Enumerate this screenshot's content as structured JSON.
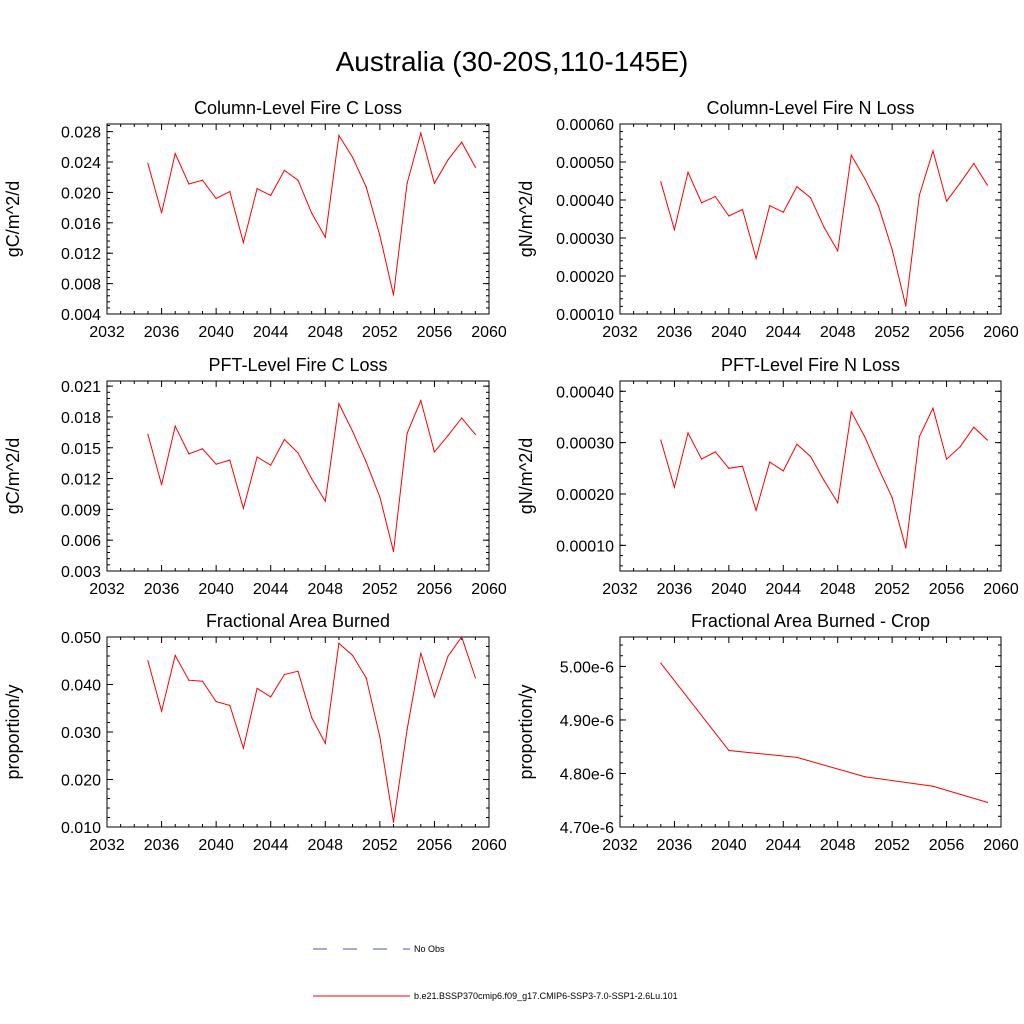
{
  "page_title": "Australia (30-20S,110-145E)",
  "colors": {
    "model": "#ff0000",
    "obs": "#4a5aa8",
    "axis": "#000000"
  },
  "legend": {
    "obs_label": "No Obs",
    "model_label": "b.e21.BSSP370cmip6.f09_g17.CMIP6-SSP3-7.0-SSP1-2.6Lu.101"
  },
  "chart_data": [
    {
      "type": "line",
      "title": "Column-Level Fire C Loss",
      "ylabel": "gC/m^2/d",
      "xlim": [
        2032,
        2060
      ],
      "ylim": [
        0.004,
        0.029
      ],
      "xticks": [
        "2032",
        "2036",
        "2040",
        "2044",
        "2048",
        "2052",
        "2056",
        "2060"
      ],
      "yticks": [
        "0.004",
        "0.008",
        "0.012",
        "0.016",
        "0.020",
        "0.024",
        "0.028"
      ],
      "series": [
        {
          "x": [
            2035,
            2036,
            2037,
            2038,
            2039,
            2040,
            2041,
            2042,
            2043,
            2044,
            2045,
            2046,
            2047,
            2048,
            2049,
            2050,
            2051,
            2052,
            2053,
            2054,
            2055,
            2056,
            2057,
            2058,
            2059
          ],
          "y": [
            0.0238,
            0.0173,
            0.0251,
            0.0211,
            0.0216,
            0.0192,
            0.0201,
            0.0134,
            0.0205,
            0.0196,
            0.0229,
            0.0216,
            0.0173,
            0.0141,
            0.0275,
            0.0246,
            0.0207,
            0.0143,
            0.0065,
            0.0212,
            0.0278,
            0.0212,
            0.0243,
            0.0266,
            0.0233
          ]
        }
      ]
    },
    {
      "type": "line",
      "title": "Column-Level Fire N Loss",
      "ylabel": "gN/m^2/d",
      "xlim": [
        2032,
        2060
      ],
      "ylim": [
        0.0001,
        0.0006
      ],
      "xticks": [
        "2032",
        "2036",
        "2040",
        "2044",
        "2048",
        "2052",
        "2056",
        "2060"
      ],
      "yticks": [
        "0.00010",
        "0.00020",
        "0.00030",
        "0.00040",
        "0.00050",
        "0.00060"
      ],
      "series": [
        {
          "x": [
            2035,
            2036,
            2037,
            2038,
            2039,
            2040,
            2041,
            2042,
            2043,
            2044,
            2045,
            2046,
            2047,
            2048,
            2049,
            2050,
            2051,
            2052,
            2053,
            2054,
            2055,
            2056,
            2057,
            2058,
            2059
          ],
          "y": [
            0.000448,
            0.000322,
            0.000473,
            0.000393,
            0.000409,
            0.000358,
            0.000375,
            0.000246,
            0.000385,
            0.000368,
            0.000435,
            0.000406,
            0.000328,
            0.000266,
            0.000518,
            0.000456,
            0.000384,
            0.00027,
            0.000121,
            0.000413,
            0.000529,
            0.000397,
            0.000445,
            0.000496,
            0.000439
          ]
        }
      ]
    },
    {
      "type": "line",
      "title": "PFT-Level Fire C Loss",
      "ylabel": "gC/m^2/d",
      "xlim": [
        2032,
        2060
      ],
      "ylim": [
        0.003,
        0.0215
      ],
      "xticks": [
        "2032",
        "2036",
        "2040",
        "2044",
        "2048",
        "2052",
        "2056",
        "2060"
      ],
      "yticks": [
        "0.003",
        "0.006",
        "0.009",
        "0.012",
        "0.015",
        "0.018",
        "0.021"
      ],
      "series": [
        {
          "x": [
            2035,
            2036,
            2037,
            2038,
            2039,
            2040,
            2041,
            2042,
            2043,
            2044,
            2045,
            2046,
            2047,
            2048,
            2049,
            2050,
            2051,
            2052,
            2053,
            2054,
            2055,
            2056,
            2057,
            2058,
            2059
          ],
          "y": [
            0.0163,
            0.0114,
            0.0171,
            0.0144,
            0.0149,
            0.0134,
            0.0138,
            0.0091,
            0.0141,
            0.0133,
            0.0158,
            0.0145,
            0.012,
            0.0098,
            0.0193,
            0.0166,
            0.0136,
            0.0102,
            0.0049,
            0.0164,
            0.0196,
            0.0146,
            0.0162,
            0.0179,
            0.0163
          ]
        }
      ]
    },
    {
      "type": "line",
      "title": "PFT-Level Fire N Loss",
      "ylabel": "gN/m^2/d",
      "xlim": [
        2032,
        2060
      ],
      "ylim": [
        5e-05,
        0.00042
      ],
      "xticks": [
        "2032",
        "2036",
        "2040",
        "2044",
        "2048",
        "2052",
        "2056",
        "2060"
      ],
      "yticks": [
        "0.00010",
        "0.00020",
        "0.00030",
        "0.00040"
      ],
      "series": [
        {
          "x": [
            2035,
            2036,
            2037,
            2038,
            2039,
            2040,
            2041,
            2042,
            2043,
            2044,
            2045,
            2046,
            2047,
            2048,
            2049,
            2050,
            2051,
            2052,
            2053,
            2054,
            2055,
            2056,
            2057,
            2058,
            2059
          ],
          "y": [
            0.000305,
            0.000213,
            0.000319,
            0.000268,
            0.000282,
            0.00025,
            0.000254,
            0.000168,
            0.000262,
            0.000245,
            0.000297,
            0.000273,
            0.000226,
            0.000183,
            0.00036,
            0.000311,
            0.00025,
            0.000193,
            9.5e-05,
            0.000312,
            0.000367,
            0.000268,
            0.000292,
            0.00033,
            0.000305
          ]
        }
      ]
    },
    {
      "type": "line",
      "title": "Fractional Area Burned",
      "ylabel": "proportion/y",
      "xlim": [
        2032,
        2060
      ],
      "ylim": [
        0.01,
        0.05
      ],
      "xticks": [
        "2032",
        "2036",
        "2040",
        "2044",
        "2048",
        "2052",
        "2056",
        "2060"
      ],
      "yticks": [
        "0.010",
        "0.020",
        "0.030",
        "0.040",
        "0.050"
      ],
      "series": [
        {
          "x": [
            2035,
            2036,
            2037,
            2038,
            2039,
            2040,
            2041,
            2042,
            2043,
            2044,
            2045,
            2046,
            2047,
            2048,
            2049,
            2050,
            2051,
            2052,
            2053,
            2054,
            2055,
            2056,
            2057,
            2058,
            2059
          ],
          "y": [
            0.045,
            0.0344,
            0.0461,
            0.0409,
            0.0407,
            0.0364,
            0.0356,
            0.0266,
            0.0392,
            0.0374,
            0.0421,
            0.0428,
            0.0331,
            0.0276,
            0.0487,
            0.0461,
            0.0414,
            0.0289,
            0.011,
            0.0305,
            0.0466,
            0.0374,
            0.046,
            0.05,
            0.0414
          ]
        }
      ]
    },
    {
      "type": "line",
      "title": "Fractional Area Burned - Crop",
      "ylabel": "proportion/y",
      "xlim": [
        2032,
        2060
      ],
      "ylim": [
        4.7e-06,
        5.055e-06
      ],
      "xticks": [
        "2032",
        "2036",
        "2040",
        "2044",
        "2048",
        "2052",
        "2056",
        "2060"
      ],
      "yticks": [
        "4.70e-6",
        "4.80e-6",
        "4.90e-6",
        "5.00e-6"
      ],
      "series": [
        {
          "x": [
            2035,
            2040,
            2045,
            2050,
            2055,
            2059
          ],
          "y": [
            5.006e-06,
            4.843e-06,
            4.83e-06,
            4.794e-06,
            4.776e-06,
            4.746e-06
          ]
        }
      ]
    }
  ]
}
